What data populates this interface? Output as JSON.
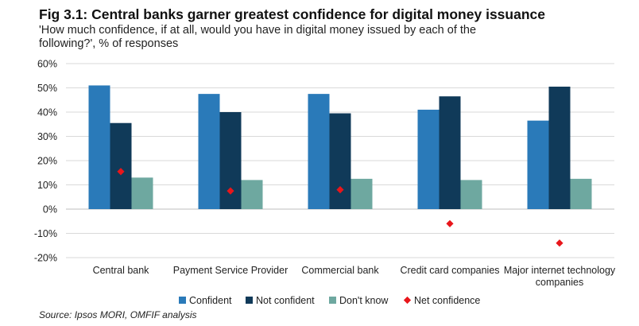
{
  "header": {
    "title": "Fig 3.1: Central banks garner greatest confidence for digital money issuance",
    "subtitle": "'How much confidence, if at all, would you have in digital money issued by each of the following?', % of responses"
  },
  "footer": {
    "source": "Source: Ipsos MORI, OMFIF analysis"
  },
  "chart_data": {
    "type": "bar",
    "categories": [
      [
        "Central bank"
      ],
      [
        "Payment Service Provider"
      ],
      [
        "Commercial bank"
      ],
      [
        "Credit card companies"
      ],
      [
        "Major internet technology",
        "companies"
      ]
    ],
    "series": [
      {
        "name": "Confident",
        "color": "#2a7ab9",
        "values": [
          51,
          47.5,
          47.5,
          41,
          36.5
        ]
      },
      {
        "name": "Not confident",
        "color": "#103a59",
        "values": [
          35.5,
          40,
          39.5,
          46.5,
          50.5
        ]
      },
      {
        "name": "Don't know",
        "color": "#6ea8a0",
        "values": [
          13,
          12,
          12.5,
          12,
          12.5
        ]
      }
    ],
    "markers": {
      "name": "Net confidence",
      "color": "#e8161b",
      "values": [
        15.5,
        7.5,
        8,
        -6,
        -14
      ]
    },
    "ylim": [
      -20,
      60
    ],
    "yticks": [
      -20,
      -10,
      0,
      10,
      20,
      30,
      40,
      50,
      60
    ],
    "ytick_suffix": "%",
    "grid": true,
    "legend": {
      "position": "bottom",
      "items": [
        "Confident",
        "Not confident",
        "Don't know",
        "Net confidence"
      ]
    }
  }
}
